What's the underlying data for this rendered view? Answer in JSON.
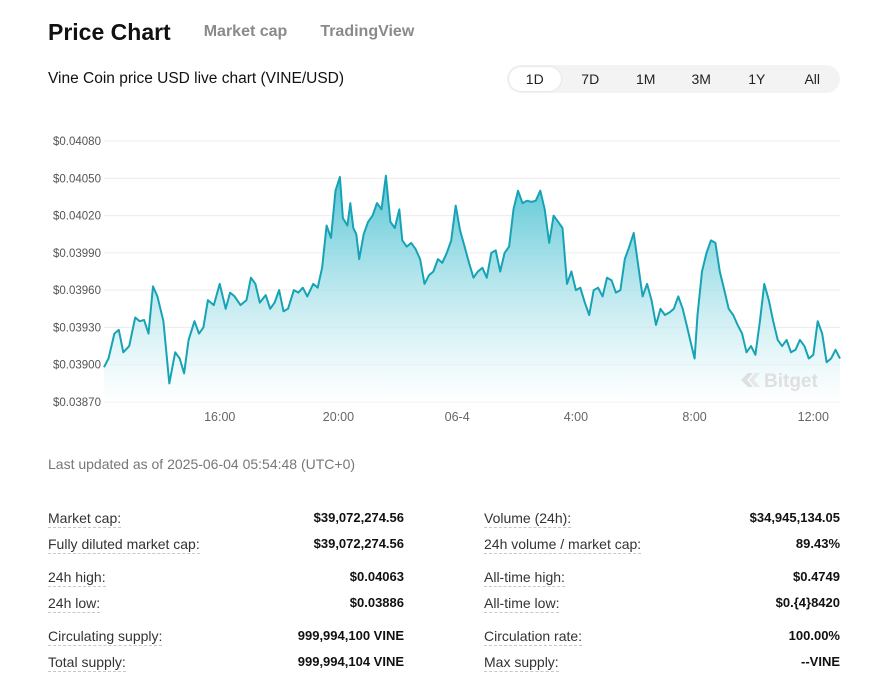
{
  "header": {
    "title": "Price Chart",
    "tabs": [
      "Market cap",
      "TradingView"
    ]
  },
  "subtitle": "Vine Coin price USD live chart (VINE/USD)",
  "ranges": [
    "1D",
    "7D",
    "1M",
    "3M",
    "1Y",
    "All"
  ],
  "active_range": "1D",
  "watermark": "Bitget",
  "last_updated": "Last updated as of 2025-06-04 05:54:48  (UTC+0)",
  "colors": {
    "line": "#16a3b5",
    "fill_top": "#4fc3d3",
    "fill_bottom": "#ffffff"
  },
  "chart_data": {
    "type": "area",
    "title": "Vine Coin price USD live chart (VINE/USD)",
    "xlabel": "",
    "ylabel": "",
    "y_ticks": [
      "$0.04080",
      "$0.04050",
      "$0.04020",
      "$0.03990",
      "$0.03960",
      "$0.03930",
      "$0.03900",
      "$0.03870"
    ],
    "y_tick_values": [
      0.0408,
      0.0405,
      0.0402,
      0.0399,
      0.0396,
      0.0393,
      0.039,
      0.0387
    ],
    "ylim": [
      0.0387,
      0.0408
    ],
    "x_ticks": [
      "16:00",
      "20:00",
      "06-4",
      "4:00",
      "8:00",
      "12:00"
    ],
    "x_tick_hours": [
      16,
      20,
      24,
      28,
      32,
      36
    ],
    "xlim_hours": [
      12.1,
      36.9
    ],
    "grid": "horizontal",
    "series": [
      {
        "x_hours": [
          12.1,
          12.25,
          12.45,
          12.6,
          12.75,
          12.95,
          13.15,
          13.3,
          13.45,
          13.6,
          13.75,
          13.9,
          14.1,
          14.3,
          14.5,
          14.65,
          14.8,
          14.95,
          15.15,
          15.3,
          15.45,
          15.6,
          15.8,
          16.0,
          16.2,
          16.35,
          16.5,
          16.7,
          16.9,
          17.05,
          17.2,
          17.35,
          17.55,
          17.7,
          17.85,
          18.0,
          18.15,
          18.3,
          18.5,
          18.65,
          18.8,
          18.95,
          19.15,
          19.3,
          19.45,
          19.6,
          19.75,
          19.9,
          20.05,
          20.15,
          20.3,
          20.4,
          20.5,
          20.6,
          20.7,
          20.85,
          21.0,
          21.15,
          21.3,
          21.45,
          21.6,
          21.75,
          21.9,
          22.05,
          22.15,
          22.3,
          22.45,
          22.6,
          22.75,
          22.9,
          23.05,
          23.2,
          23.35,
          23.5,
          23.65,
          23.8,
          23.95,
          24.1,
          24.25,
          24.4,
          24.55,
          24.7,
          24.85,
          25.0,
          25.15,
          25.3,
          25.45,
          25.6,
          25.75,
          25.9,
          26.05,
          26.2,
          26.35,
          26.5,
          26.65,
          26.8,
          26.95,
          27.1,
          27.25,
          27.4,
          27.55,
          27.7,
          27.85,
          28.0,
          28.15,
          28.3,
          28.45,
          28.6,
          28.75,
          28.9,
          29.05,
          29.2,
          29.35,
          29.5,
          29.65,
          29.8,
          29.95,
          30.1,
          30.25,
          30.4,
          30.55,
          30.7,
          30.85,
          31.0,
          31.15,
          31.3,
          31.45,
          31.6,
          31.75,
          31.9,
          32.0,
          32.1,
          32.25,
          32.4,
          32.55,
          32.7,
          32.85,
          33.0,
          33.15,
          33.3,
          33.45,
          33.6,
          33.75,
          33.9,
          34.05,
          34.2,
          34.35,
          34.5,
          34.65,
          34.8,
          34.95,
          35.1,
          35.25,
          35.4,
          35.55,
          35.7,
          35.85,
          36.0,
          36.15,
          36.3,
          36.45,
          36.6,
          36.75,
          36.9
        ],
        "values": [
          0.03898,
          0.03905,
          0.03925,
          0.03928,
          0.0391,
          0.03915,
          0.03938,
          0.03935,
          0.03936,
          0.03925,
          0.03963,
          0.03955,
          0.03935,
          0.03885,
          0.0391,
          0.03905,
          0.03893,
          0.0392,
          0.03935,
          0.03925,
          0.0393,
          0.03952,
          0.03948,
          0.03965,
          0.03945,
          0.03958,
          0.03955,
          0.03948,
          0.03952,
          0.0397,
          0.03965,
          0.0395,
          0.03956,
          0.03945,
          0.0395,
          0.0396,
          0.03943,
          0.03945,
          0.0396,
          0.03958,
          0.03962,
          0.03955,
          0.03965,
          0.03962,
          0.03978,
          0.04012,
          0.04002,
          0.0404,
          0.04051,
          0.04018,
          0.04012,
          0.0403,
          0.0401,
          0.04005,
          0.03985,
          0.04005,
          0.04015,
          0.0402,
          0.0403,
          0.04025,
          0.04052,
          0.04015,
          0.0401,
          0.04025,
          0.04,
          0.03995,
          0.03998,
          0.03993,
          0.03985,
          0.03965,
          0.03972,
          0.03975,
          0.03985,
          0.03982,
          0.0399,
          0.04,
          0.04028,
          0.04008,
          0.03995,
          0.03982,
          0.0397,
          0.03975,
          0.03978,
          0.0397,
          0.0399,
          0.03992,
          0.03975,
          0.0399,
          0.03995,
          0.04025,
          0.0404,
          0.0403,
          0.04032,
          0.04031,
          0.04032,
          0.0404,
          0.04025,
          0.03998,
          0.0402,
          0.04015,
          0.0401,
          0.03965,
          0.03975,
          0.0396,
          0.03962,
          0.0395,
          0.0394,
          0.0396,
          0.03962,
          0.03955,
          0.0397,
          0.03968,
          0.03958,
          0.0396,
          0.03985,
          0.03995,
          0.04006,
          0.0398,
          0.03955,
          0.03965,
          0.03952,
          0.03932,
          0.03945,
          0.0394,
          0.03942,
          0.03945,
          0.03955,
          0.03945,
          0.0393,
          0.03915,
          0.03905,
          0.0394,
          0.03975,
          0.0399,
          0.04,
          0.03998,
          0.03975,
          0.0396,
          0.03945,
          0.0394,
          0.03932,
          0.03925,
          0.0391,
          0.03915,
          0.03908,
          0.03935,
          0.03965,
          0.03952,
          0.03935,
          0.0392,
          0.03915,
          0.0392,
          0.0391,
          0.03912,
          0.0392,
          0.03915,
          0.03905,
          0.03908,
          0.03935,
          0.03925,
          0.03902,
          0.03905,
          0.03912,
          0.03905
        ]
      }
    ]
  },
  "stats": {
    "left": [
      {
        "label": "Market cap:",
        "value": "$39,072,274.56"
      },
      {
        "label": "Fully diluted market cap:",
        "value": "$39,072,274.56"
      },
      {
        "label": "24h high:",
        "value": "$0.04063"
      },
      {
        "label": "24h low:",
        "value": "$0.03886"
      },
      {
        "label": "Circulating supply:",
        "value": "999,994,100 VINE"
      },
      {
        "label": "Total supply:",
        "value": "999,994,104 VINE"
      }
    ],
    "right": [
      {
        "label": "Volume (24h):",
        "value": "$34,945,134.05"
      },
      {
        "label": "24h volume / market cap:",
        "value": "89.43%"
      },
      {
        "label": "All-time high:",
        "value": "$0.4749"
      },
      {
        "label": "All-time low:",
        "value": "$0.{4}8420"
      },
      {
        "label": "Circulation rate:",
        "value": "100.00%"
      },
      {
        "label": "Max supply:",
        "value": "--VINE"
      }
    ]
  }
}
